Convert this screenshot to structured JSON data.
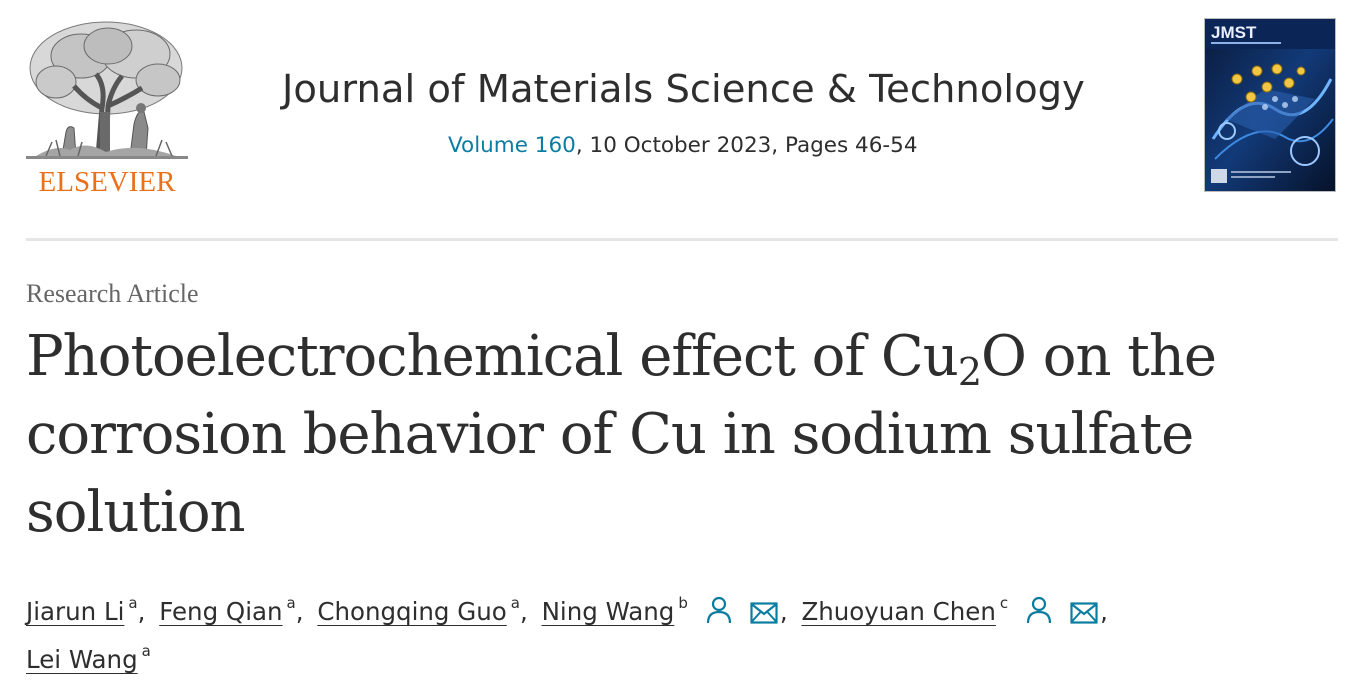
{
  "publisher": {
    "name": "ELSEVIER",
    "logo_icon": "elsevier-tree-logo",
    "brand_color": "#e9711c"
  },
  "journal": {
    "title": "Journal of Materials Science & Technology",
    "volume_link": "Volume 160",
    "issue_rest": ", 10 October 2023, Pages 46-54",
    "cover_label": "JMST",
    "cover_icon": "journal-cover-thumbnail",
    "link_color": "#0c7da0"
  },
  "article": {
    "type": "Research Article",
    "title_part1": "Photoelectrochemical effect of Cu",
    "title_sub": "2",
    "title_part2": "O on the corrosion behavior of Cu in sodium sulfate solution"
  },
  "authors": [
    {
      "name": "Jiarun Li",
      "aff": "a",
      "separator": ",",
      "person_icon": false,
      "mail_icon": false
    },
    {
      "name": "Feng Qian",
      "aff": "a",
      "separator": ",",
      "person_icon": false,
      "mail_icon": false
    },
    {
      "name": "Chongqing Guo",
      "aff": "a",
      "separator": ",",
      "person_icon": false,
      "mail_icon": false
    },
    {
      "name": "Ning Wang",
      "aff": "b",
      "separator": ",",
      "person_icon": true,
      "mail_icon": true
    },
    {
      "name": "Zhuoyuan Chen",
      "aff": "c",
      "separator": ",",
      "person_icon": true,
      "mail_icon": true
    },
    {
      "name": "Lei Wang",
      "aff": "a",
      "separator": "",
      "person_icon": false,
      "mail_icon": false
    }
  ]
}
